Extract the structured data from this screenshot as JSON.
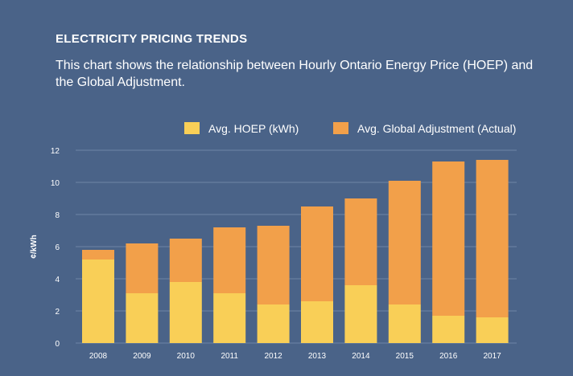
{
  "chart_data": {
    "type": "bar",
    "stacked": true,
    "title": "ELECTRICITY PRICING TRENDS",
    "subtitle": "This chart shows the relationship between Hourly Ontario Energy Price (HOEP) and the Global Adjustment.",
    "xlabel": "",
    "ylabel": "¢/kWh",
    "ylim": [
      0,
      12
    ],
    "yticks": [
      0,
      2,
      4,
      6,
      8,
      10,
      12
    ],
    "grid": true,
    "legend_position": "top",
    "categories": [
      "2008",
      "2009",
      "2010",
      "2011",
      "2012",
      "2013",
      "2014",
      "2015",
      "2016",
      "2017"
    ],
    "series": [
      {
        "name": "Avg. HOEP (kWh)",
        "color": "#f9cf57",
        "values": [
          5.2,
          3.1,
          3.8,
          3.1,
          2.4,
          2.6,
          3.6,
          2.4,
          1.7,
          1.6
        ]
      },
      {
        "name": "Avg. Global Adjustment (Actual)",
        "color": "#f2a04a",
        "values": [
          0.6,
          3.1,
          2.7,
          4.1,
          4.9,
          5.9,
          5.4,
          7.7,
          9.6,
          9.8
        ]
      }
    ]
  },
  "colors": {
    "background": "#4a6388",
    "grid": "#6f86a6",
    "text": "#ffffff"
  }
}
